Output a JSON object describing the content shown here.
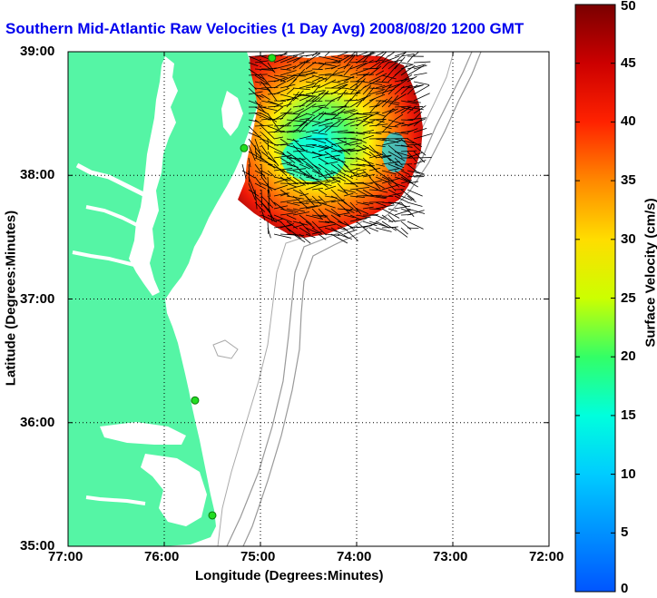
{
  "title": "Southern Mid-Atlantic Raw Velocities (1 Day Avg) 2008/08/20 1200 GMT",
  "axes": {
    "xlabel": "Longitude (Degrees:Minutes)",
    "ylabel": "Latitude (Degrees:Minutes)",
    "x_ticks": [
      "77:00",
      "76:00",
      "75:00",
      "74:00",
      "73:00",
      "72:00"
    ],
    "y_ticks": [
      "39:00",
      "38:00",
      "37:00",
      "36:00",
      "35:00"
    ]
  },
  "colorbar": {
    "label": "Surface Velocity (cm/s)",
    "ticks": [
      "0",
      "5",
      "10",
      "15",
      "20",
      "25",
      "30",
      "35",
      "40",
      "45",
      "50"
    ],
    "min": 0,
    "max": 50
  },
  "colors": {
    "land": "#55f5a5",
    "ocean": "#ffffff",
    "title_color": "#0000ee",
    "station_marker": "#22dd22"
  },
  "stations": [
    {
      "lon": -74.88,
      "lat": 38.95
    },
    {
      "lon": -75.17,
      "lat": 38.22
    },
    {
      "lon": -75.68,
      "lat": 36.18
    },
    {
      "lon": -75.5,
      "lat": 35.25
    }
  ]
}
